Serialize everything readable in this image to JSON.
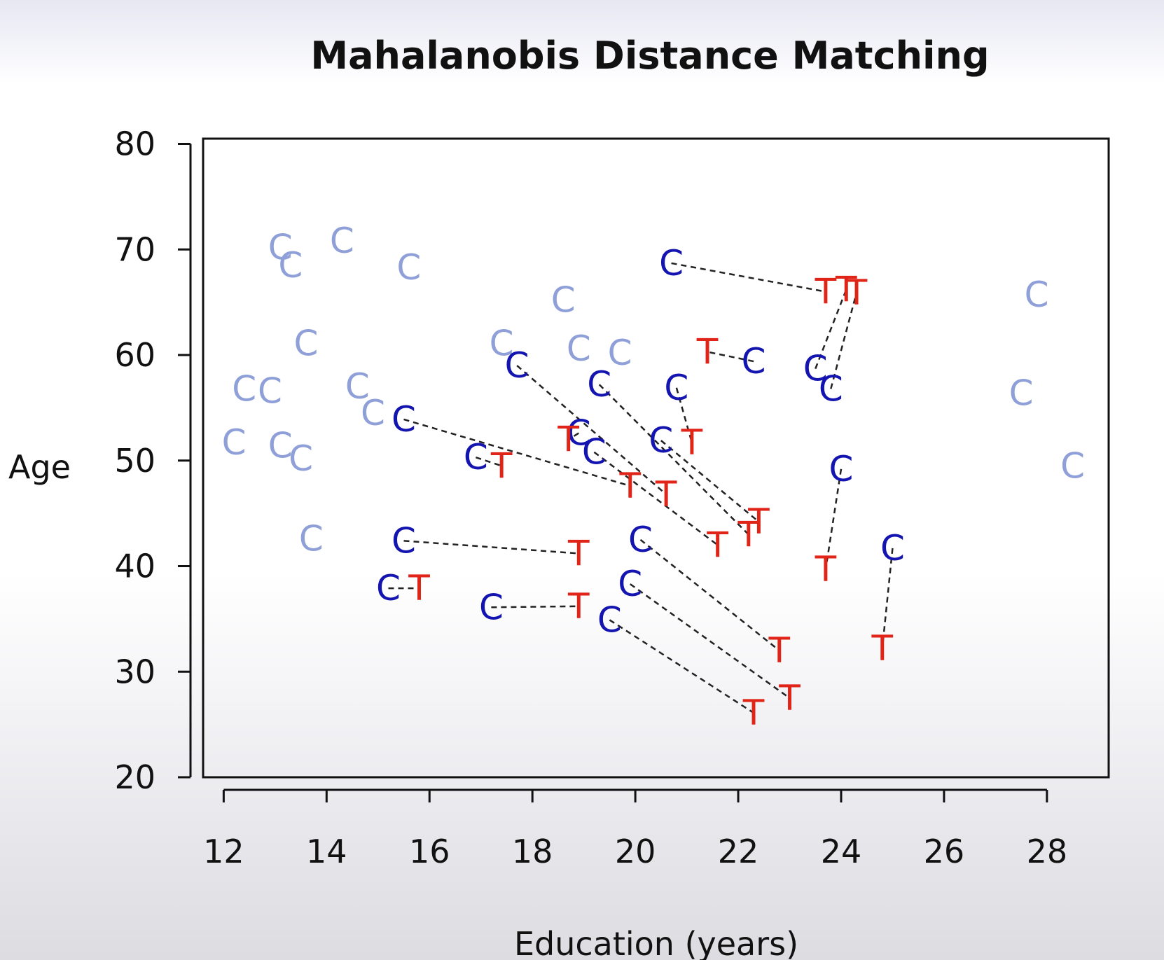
{
  "chart_data": {
    "type": "scatter",
    "title": "Mahalanobis Distance Matching",
    "xlabel": "Education (years)",
    "ylabel": "Age",
    "xlim": [
      11.6,
      29.2
    ],
    "ylim": [
      20,
      80.5
    ],
    "xticks": [
      12,
      14,
      16,
      18,
      20,
      22,
      24,
      26,
      28
    ],
    "yticks": [
      20,
      30,
      40,
      50,
      60,
      70,
      80
    ],
    "grid": false,
    "colors": {
      "unmatched_control": "#8f9fd8",
      "matched_control": "#1414b0",
      "treated": "#e02418",
      "match_line": "#222222"
    },
    "series": [
      {
        "marker": "C",
        "color": "#8f9fd8",
        "points": [
          [
            13.1,
            70.2
          ],
          [
            13.3,
            68.5
          ],
          [
            14.3,
            70.8
          ],
          [
            15.6,
            68.3
          ],
          [
            18.6,
            65.2
          ],
          [
            13.6,
            61.1
          ],
          [
            17.4,
            61.1
          ],
          [
            18.9,
            60.6
          ],
          [
            19.7,
            60.2
          ],
          [
            12.4,
            56.8
          ],
          [
            12.9,
            56.6
          ],
          [
            14.6,
            57.0
          ],
          [
            14.9,
            54.5
          ],
          [
            12.2,
            51.7
          ],
          [
            13.1,
            51.4
          ],
          [
            13.5,
            50.2
          ],
          [
            13.7,
            42.6
          ],
          [
            27.8,
            65.7
          ],
          [
            27.5,
            56.4
          ],
          [
            28.5,
            49.5
          ]
        ]
      },
      {
        "marker": "C",
        "color": "#1414b0",
        "points": [
          [
            20.7,
            68.7
          ],
          [
            17.7,
            59.0
          ],
          [
            19.3,
            57.2
          ],
          [
            20.8,
            56.9
          ],
          [
            22.3,
            59.4
          ],
          [
            23.5,
            58.7
          ],
          [
            23.8,
            56.8
          ],
          [
            15.5,
            53.9
          ],
          [
            16.9,
            50.3
          ],
          [
            18.9,
            52.6
          ],
          [
            19.2,
            50.8
          ],
          [
            20.5,
            51.9
          ],
          [
            24.0,
            49.2
          ],
          [
            15.5,
            42.4
          ],
          [
            15.2,
            37.9
          ],
          [
            17.2,
            36.1
          ],
          [
            20.1,
            42.5
          ],
          [
            19.9,
            38.3
          ],
          [
            19.5,
            34.9
          ],
          [
            25.0,
            41.7
          ]
        ]
      },
      {
        "marker": "T",
        "color": "#e02418",
        "points": [
          [
            23.7,
            66.0
          ],
          [
            24.1,
            66.2
          ],
          [
            24.3,
            65.9
          ],
          [
            21.4,
            60.3
          ],
          [
            21.1,
            51.7
          ],
          [
            18.7,
            52.0
          ],
          [
            17.4,
            49.5
          ],
          [
            19.9,
            47.6
          ],
          [
            20.6,
            46.8
          ],
          [
            22.4,
            44.2
          ],
          [
            22.2,
            43.0
          ],
          [
            21.6,
            42.0
          ],
          [
            18.9,
            41.2
          ],
          [
            15.8,
            37.9
          ],
          [
            18.9,
            36.2
          ],
          [
            22.8,
            32.0
          ],
          [
            24.8,
            32.2
          ],
          [
            23.0,
            27.5
          ],
          [
            22.3,
            26.1
          ],
          [
            23.7,
            39.7
          ]
        ]
      }
    ],
    "matches": [
      [
        [
          20.7,
          68.7
        ],
        [
          23.7,
          66.0
        ]
      ],
      [
        [
          22.3,
          59.4
        ],
        [
          21.4,
          60.3
        ]
      ],
      [
        [
          23.5,
          58.7
        ],
        [
          24.1,
          66.2
        ]
      ],
      [
        [
          23.8,
          56.8
        ],
        [
          24.3,
          65.9
        ]
      ],
      [
        [
          20.8,
          56.9
        ],
        [
          21.1,
          51.7
        ]
      ],
      [
        [
          17.7,
          59.0
        ],
        [
          20.6,
          46.8
        ]
      ],
      [
        [
          19.3,
          57.2
        ],
        [
          22.2,
          43.0
        ]
      ],
      [
        [
          15.5,
          53.9
        ],
        [
          19.9,
          47.6
        ]
      ],
      [
        [
          16.9,
          50.3
        ],
        [
          17.4,
          49.5
        ]
      ],
      [
        [
          18.9,
          52.6
        ],
        [
          18.7,
          52.0
        ]
      ],
      [
        [
          19.2,
          50.8
        ],
        [
          21.6,
          42.0
        ]
      ],
      [
        [
          20.5,
          51.9
        ],
        [
          22.4,
          44.2
        ]
      ],
      [
        [
          24.0,
          49.2
        ],
        [
          23.7,
          39.7
        ]
      ],
      [
        [
          15.5,
          42.4
        ],
        [
          18.9,
          41.2
        ]
      ],
      [
        [
          15.2,
          37.9
        ],
        [
          15.8,
          37.9
        ]
      ],
      [
        [
          17.2,
          36.1
        ],
        [
          18.9,
          36.2
        ]
      ],
      [
        [
          20.1,
          42.5
        ],
        [
          22.8,
          32.0
        ]
      ],
      [
        [
          19.9,
          38.3
        ],
        [
          23.0,
          27.5
        ]
      ],
      [
        [
          19.5,
          34.9
        ],
        [
          22.3,
          26.1
        ]
      ],
      [
        [
          25.0,
          41.7
        ],
        [
          24.8,
          32.2
        ]
      ]
    ]
  }
}
